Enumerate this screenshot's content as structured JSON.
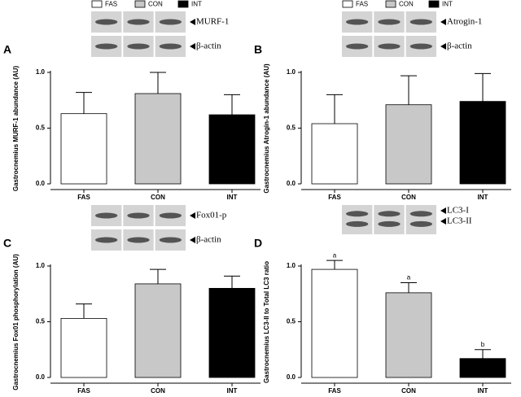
{
  "chart_data": [
    {
      "type": "bar",
      "panel": "A",
      "y_label": "Gastrocnemius MURF-1 abundance (AU)",
      "blot_labels": [
        "MURF-1",
        "β-actin"
      ],
      "categories": [
        "FAS",
        "CON",
        "INT"
      ],
      "colors": [
        "#ffffff",
        "#c8c8c8",
        "#000000"
      ],
      "values": [
        0.63,
        0.81,
        0.62
      ],
      "errors": [
        0.19,
        0.19,
        0.18
      ],
      "ylim": [
        0,
        1
      ],
      "yticks": [
        {
          "value": 0,
          "label": "0.0"
        },
        {
          "value": 0.5,
          "label": "0.5"
        },
        {
          "value": 1,
          "label": "1.0"
        }
      ]
    },
    {
      "type": "bar",
      "panel": "B",
      "y_label": "Gastrocnemius Atrogin-1 abundance (AU)",
      "blot_labels": [
        "Atrogin-1",
        "β-actin"
      ],
      "categories": [
        "FAS",
        "CON",
        "INT"
      ],
      "colors": [
        "#ffffff",
        "#c8c8c8",
        "#000000"
      ],
      "values": [
        0.54,
        0.71,
        0.74
      ],
      "errors": [
        0.26,
        0.26,
        0.25
      ],
      "ylim": [
        0,
        1
      ],
      "yticks": [
        {
          "value": 0,
          "label": "0.0"
        },
        {
          "value": 0.5,
          "label": "0.5"
        },
        {
          "value": 1,
          "label": "1.0"
        }
      ]
    },
    {
      "type": "bar",
      "panel": "C",
      "y_label": "Gastrocnemius Fox01 phosphorylation (AU)",
      "blot_labels": [
        "Fox01-p",
        "β-actin"
      ],
      "categories": [
        "FAS",
        "CON",
        "INT"
      ],
      "colors": [
        "#ffffff",
        "#c8c8c8",
        "#000000"
      ],
      "values": [
        0.53,
        0.84,
        0.8
      ],
      "errors": [
        0.13,
        0.13,
        0.11
      ],
      "ylim": [
        0,
        1
      ],
      "yticks": [
        {
          "value": 0,
          "label": "0.0"
        },
        {
          "value": 0.5,
          "label": "0.5"
        },
        {
          "value": 1,
          "label": "1.0"
        }
      ]
    },
    {
      "type": "bar",
      "panel": "D",
      "y_label": "Gastrocnemius LC3-II to Total LC3 ratio",
      "blot_labels": [
        "LC3-I",
        "LC3-II"
      ],
      "categories": [
        "FAS",
        "CON",
        "INT"
      ],
      "colors": [
        "#ffffff",
        "#c8c8c8",
        "#000000"
      ],
      "values": [
        0.97,
        0.76,
        0.17
      ],
      "errors": [
        0.08,
        0.09,
        0.08
      ],
      "annotations": [
        "a",
        "a",
        "b"
      ],
      "ylim": [
        0,
        1
      ],
      "yticks": [
        {
          "value": 0,
          "label": "0.0"
        },
        {
          "value": 0.5,
          "label": "0.5"
        },
        {
          "value": 1,
          "label": "1.0"
        }
      ]
    }
  ]
}
